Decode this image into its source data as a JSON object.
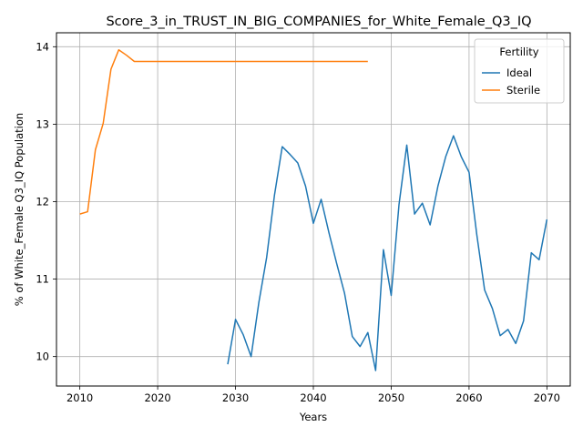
{
  "chart_data": {
    "type": "line",
    "title": "Score_3_in_TRUST_IN_BIG_COMPANIES_for_White_Female_Q3_IQ",
    "xlabel": "Years",
    "ylabel": "% of White_Female Q3_IQ Population",
    "xlim": [
      2007,
      2073
    ],
    "ylim": [
      9.62,
      14.18
    ],
    "xticks": [
      2010,
      2020,
      2030,
      2040,
      2050,
      2060,
      2070
    ],
    "yticks": [
      10,
      11,
      12,
      13,
      14
    ],
    "grid": true,
    "legend": {
      "title": "Fertility",
      "placement": "top-right",
      "entries": [
        "Ideal",
        "Sterile"
      ]
    },
    "series": [
      {
        "name": "Ideal",
        "color": "#1f77b4",
        "x": [
          2029,
          2030,
          2031,
          2032,
          2033,
          2034,
          2035,
          2036,
          2037,
          2038,
          2039,
          2040,
          2041,
          2042,
          2043,
          2044,
          2045,
          2046,
          2047,
          2048,
          2049,
          2050,
          2051,
          2052,
          2053,
          2054,
          2055,
          2056,
          2057,
          2058,
          2059,
          2060,
          2061,
          2062,
          2063,
          2064,
          2065,
          2066,
          2067,
          2068,
          2069,
          2070
        ],
        "y": [
          9.9,
          10.48,
          10.28,
          10.0,
          10.7,
          11.28,
          12.08,
          12.71,
          12.61,
          12.5,
          12.2,
          11.72,
          12.03,
          11.6,
          11.2,
          10.82,
          10.26,
          10.13,
          10.31,
          9.82,
          11.38,
          10.79,
          11.96,
          12.73,
          11.84,
          11.98,
          11.7,
          12.2,
          12.58,
          12.85,
          12.58,
          12.38,
          11.57,
          10.86,
          10.62,
          10.27,
          10.35,
          10.17,
          10.46,
          11.34,
          11.25,
          11.77
        ]
      },
      {
        "name": "Sterile",
        "color": "#ff7f0e",
        "x": [
          2010,
          2011,
          2012,
          2013,
          2014,
          2015,
          2016,
          2017,
          2018,
          2019,
          2020,
          2021,
          2022,
          2023,
          2024,
          2025,
          2026,
          2027,
          2028,
          2029,
          2030,
          2031,
          2032,
          2033,
          2034,
          2035,
          2036,
          2037,
          2038,
          2039,
          2040,
          2041,
          2042,
          2043,
          2044,
          2045,
          2046,
          2047
        ],
        "y": [
          11.84,
          11.87,
          12.67,
          13.01,
          13.71,
          13.96,
          13.89,
          13.81,
          13.81,
          13.81,
          13.81,
          13.81,
          13.81,
          13.81,
          13.81,
          13.81,
          13.81,
          13.81,
          13.81,
          13.81,
          13.81,
          13.81,
          13.81,
          13.81,
          13.81,
          13.81,
          13.81,
          13.81,
          13.81,
          13.81,
          13.81,
          13.81,
          13.81,
          13.81,
          13.81,
          13.81,
          13.81,
          13.81
        ]
      }
    ]
  }
}
